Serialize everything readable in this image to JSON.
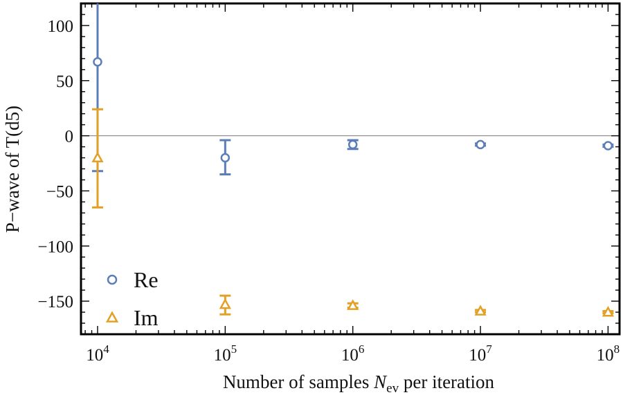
{
  "chart_data": {
    "type": "scatter",
    "x_scale": "log",
    "xlim": [
      10000,
      100000000
    ],
    "ylim": [
      -180,
      120
    ],
    "xlabel": {
      "prefix": "Number of samples ",
      "var": "N",
      "sub": "ev",
      "suffix": " per iteration"
    },
    "ylabel": "P−wave of T(d5)",
    "x_ticks": [
      {
        "value": 10000,
        "base": "10",
        "exp": "4"
      },
      {
        "value": 100000,
        "base": "10",
        "exp": "5"
      },
      {
        "value": 1000000,
        "base": "10",
        "exp": "6"
      },
      {
        "value": 10000000,
        "base": "10",
        "exp": "7"
      },
      {
        "value": 100000000,
        "base": "10",
        "exp": "8"
      }
    ],
    "y_ticks": [
      {
        "value": 100,
        "label": "100"
      },
      {
        "value": 50,
        "label": "50"
      },
      {
        "value": 0,
        "label": "0"
      },
      {
        "value": -50,
        "label": "−50"
      },
      {
        "value": -100,
        "label": "−100"
      },
      {
        "value": -150,
        "label": "−150"
      }
    ],
    "zero_line": true,
    "grid": false,
    "legend_position": "bottom-left",
    "series": [
      {
        "name": "Re",
        "marker": "circle",
        "color": "#5b7db8",
        "points": [
          {
            "x": 10000,
            "y": 67,
            "err_low": -32,
            "err_high": 140
          },
          {
            "x": 100000,
            "y": -20,
            "err_low": -35,
            "err_high": -4
          },
          {
            "x": 1000000,
            "y": -8,
            "err_low": -12,
            "err_high": -4
          },
          {
            "x": 10000000,
            "y": -8,
            "err_low": -9,
            "err_high": -7
          },
          {
            "x": 100000000,
            "y": -9,
            "err_low": -10,
            "err_high": -8
          }
        ]
      },
      {
        "name": "Im",
        "marker": "triangle",
        "color": "#e3a024",
        "points": [
          {
            "x": 10000,
            "y": -20,
            "err_low": -65,
            "err_high": 24
          },
          {
            "x": 100000,
            "y": -153,
            "err_low": -162,
            "err_high": -145
          },
          {
            "x": 1000000,
            "y": -154,
            "err_low": -156,
            "err_high": -152
          },
          {
            "x": 10000000,
            "y": -159,
            "err_low": -160,
            "err_high": -158
          },
          {
            "x": 100000000,
            "y": -160,
            "err_low": -161,
            "err_high": -159
          }
        ]
      }
    ]
  }
}
